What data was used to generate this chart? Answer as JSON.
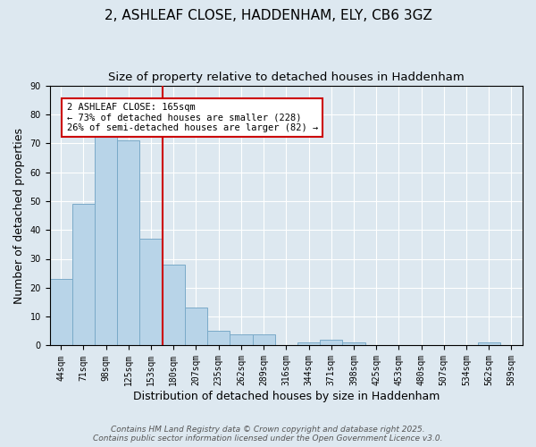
{
  "title": "2, ASHLEAF CLOSE, HADDENHAM, ELY, CB6 3GZ",
  "subtitle": "Size of property relative to detached houses in Haddenham",
  "xlabel": "Distribution of detached houses by size in Haddenham",
  "ylabel": "Number of detached properties",
  "bar_labels": [
    "44sqm",
    "71sqm",
    "98sqm",
    "125sqm",
    "153sqm",
    "180sqm",
    "207sqm",
    "235sqm",
    "262sqm",
    "289sqm",
    "316sqm",
    "344sqm",
    "371sqm",
    "398sqm",
    "425sqm",
    "453sqm",
    "480sqm",
    "507sqm",
    "534sqm",
    "562sqm",
    "589sqm"
  ],
  "bar_values": [
    23,
    49,
    74,
    71,
    37,
    28,
    13,
    5,
    4,
    4,
    0,
    1,
    2,
    1,
    0,
    0,
    0,
    0,
    0,
    1,
    0
  ],
  "bar_color": "#b8d4e8",
  "bar_edge_color": "#7aaac8",
  "vline_x": 4.5,
  "vline_color": "#cc0000",
  "ylim": [
    0,
    90
  ],
  "yticks": [
    0,
    10,
    20,
    30,
    40,
    50,
    60,
    70,
    80,
    90
  ],
  "annotation_title": "2 ASHLEAF CLOSE: 165sqm",
  "annotation_line1": "← 73% of detached houses are smaller (228)",
  "annotation_line2": "26% of semi-detached houses are larger (82) →",
  "annotation_box_color": "#ffffff",
  "annotation_box_edge": "#cc0000",
  "footer1": "Contains HM Land Registry data © Crown copyright and database right 2025.",
  "footer2": "Contains public sector information licensed under the Open Government Licence v3.0.",
  "background_color": "#dde8f0",
  "plot_bg_color": "#dde8f0",
  "grid_color": "#ffffff",
  "title_fontsize": 11,
  "subtitle_fontsize": 9.5,
  "axis_label_fontsize": 9,
  "tick_fontsize": 7,
  "footer_fontsize": 6.5,
  "annotation_fontsize": 7.5
}
